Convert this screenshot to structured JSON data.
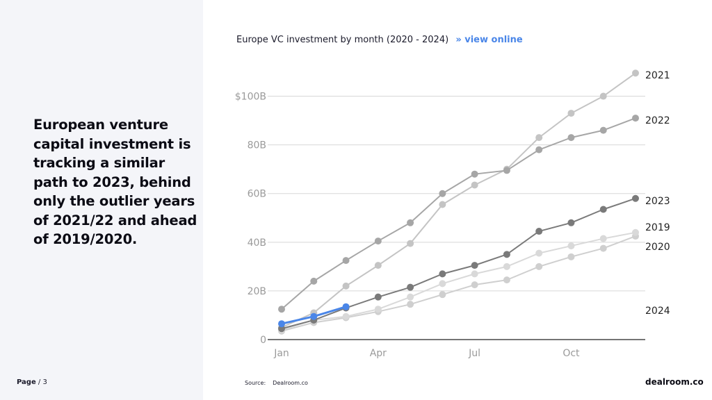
{
  "headline": "European venture capital investment is tracking a similar path to 2023, behind only the outlier years of 2021/22 and ahead of 2019/2020.",
  "page": {
    "label": "Page",
    "separator": " / ",
    "number": "3"
  },
  "chart_title": "Europe VC investment by month (2020 - 2024)",
  "view_online": "» view online",
  "source_label": "Source:",
  "source_value": "Dealroom.co",
  "brand": "dealroom.co",
  "colors": {
    "2019": "#d9d9d9",
    "2020": "#cfcfcf",
    "2021": "#c4c4c4",
    "2022": "#a6a6a6",
    "2023": "#7a7a7a",
    "2024": "#4a86e8",
    "axis": "#222222",
    "grid": "#d7d7d7",
    "tick": "#9a9a9a"
  },
  "chart_data": {
    "type": "line",
    "title": "Europe VC investment by month (2020 - 2024)",
    "xlabel": "",
    "ylabel": "",
    "x_ticks": [
      {
        "label": "Jan",
        "month": 1
      },
      {
        "label": "Apr",
        "month": 4
      },
      {
        "label": "Jul",
        "month": 7
      },
      {
        "label": "Oct",
        "month": 10
      }
    ],
    "y_ticks": [
      {
        "label": "0",
        "value": 0
      },
      {
        "label": "20B",
        "value": 20
      },
      {
        "label": "40B",
        "value": 40
      },
      {
        "label": "60B",
        "value": 60
      },
      {
        "label": "80B",
        "value": 80
      },
      {
        "label": "$100B",
        "value": 100
      }
    ],
    "xlim": [
      1,
      12
    ],
    "ylim": [
      0,
      110
    ],
    "months": [
      1,
      2,
      3,
      4,
      5,
      6,
      7,
      8,
      9,
      10,
      11,
      12
    ],
    "series": [
      {
        "name": "2019",
        "label": "2019",
        "values": [
          4,
          8,
          9.5,
          12.5,
          17.5,
          23,
          27,
          30,
          35.5,
          38.5,
          41.5,
          44
        ]
      },
      {
        "name": "2020",
        "label": "2020",
        "values": [
          3.5,
          7,
          9,
          11.5,
          14.5,
          18.5,
          22.5,
          24.5,
          30,
          34,
          37.5,
          42.5
        ]
      },
      {
        "name": "2021",
        "label": "2021",
        "values": [
          5,
          11,
          22,
          30.5,
          39.5,
          55.5,
          63.5,
          70,
          83,
          93,
          100,
          109.5
        ]
      },
      {
        "name": "2022",
        "label": "2022",
        "values": [
          12.5,
          24,
          32.5,
          40.5,
          48,
          60,
          68,
          69.5,
          78,
          83,
          86,
          91
        ]
      },
      {
        "name": "2023",
        "label": "2023",
        "values": [
          4.5,
          8,
          13,
          17.5,
          21.5,
          27,
          30.5,
          35,
          44.5,
          48,
          53.5,
          58
        ]
      },
      {
        "name": "2024",
        "label": "2024",
        "values": [
          6.5,
          9.5,
          13.5
        ]
      }
    ]
  }
}
